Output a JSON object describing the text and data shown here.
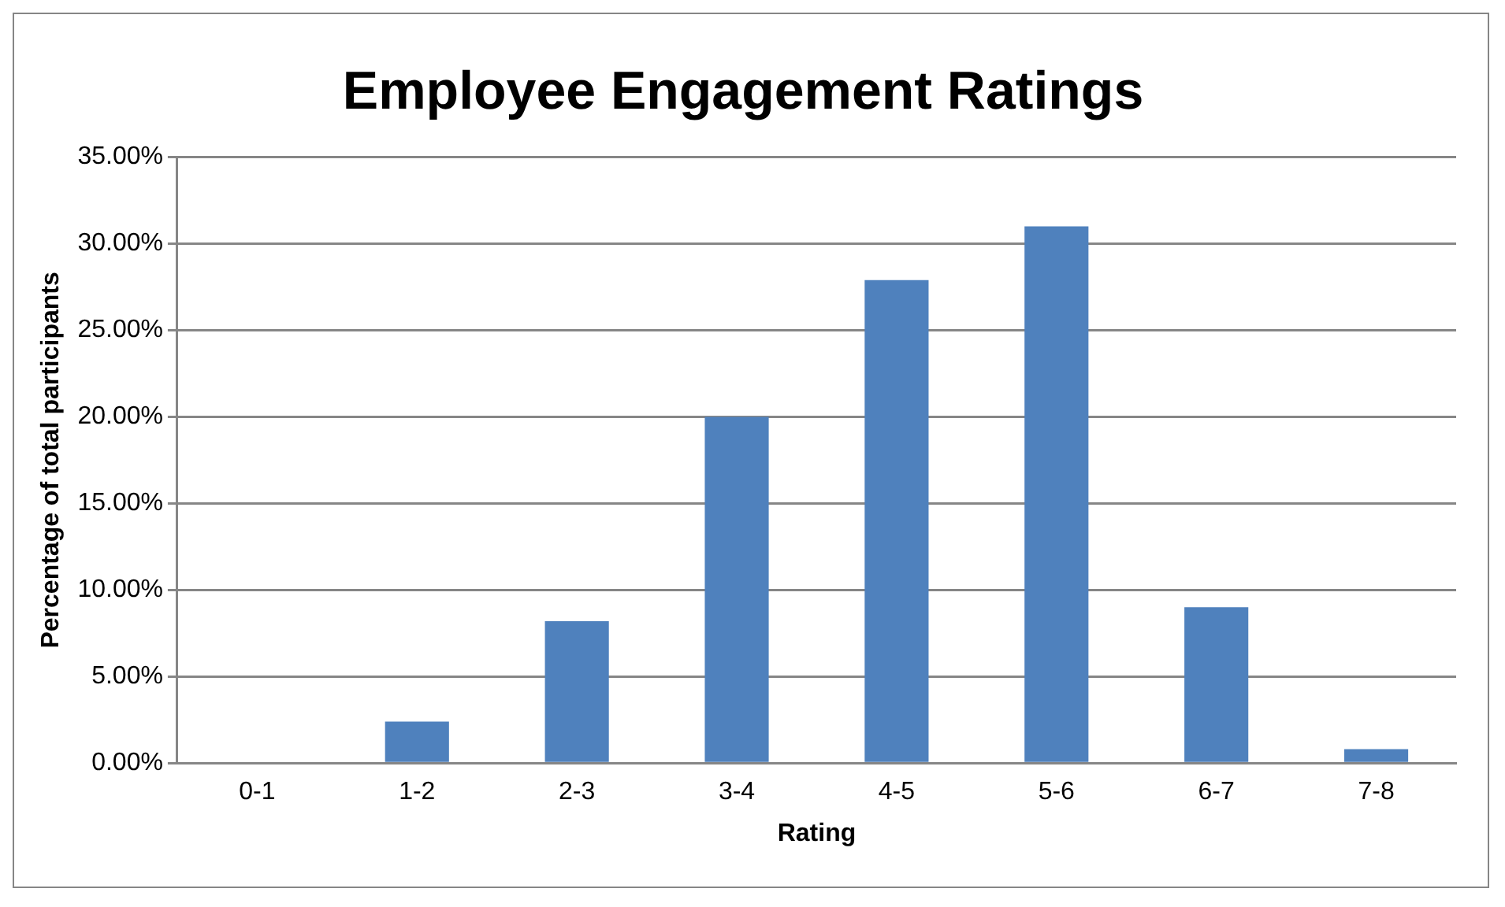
{
  "chart_data": {
    "type": "bar",
    "title": "Employee Engagement Ratings",
    "xlabel": "Rating",
    "ylabel": "Percentage of total participants",
    "categories": [
      "0-1",
      "1-2",
      "2-3",
      "3-4",
      "4-5",
      "5-6",
      "6-7",
      "7-8"
    ],
    "values": [
      0,
      2.4,
      8.2,
      20.0,
      27.9,
      31.0,
      9.0,
      0.8
    ],
    "color": "#4f81bd",
    "ylim": [
      0,
      35
    ],
    "yticks": [
      {
        "value": 0,
        "label": "0.00%"
      },
      {
        "value": 5,
        "label": "5.00%"
      },
      {
        "value": 10,
        "label": "10.00%"
      },
      {
        "value": 15,
        "label": "15.00%"
      },
      {
        "value": 20,
        "label": "20.00%"
      },
      {
        "value": 25,
        "label": "25.00%"
      },
      {
        "value": 30,
        "label": "30.00%"
      },
      {
        "value": 35,
        "label": "35.00%"
      }
    ],
    "grid": "y",
    "legend": false
  }
}
